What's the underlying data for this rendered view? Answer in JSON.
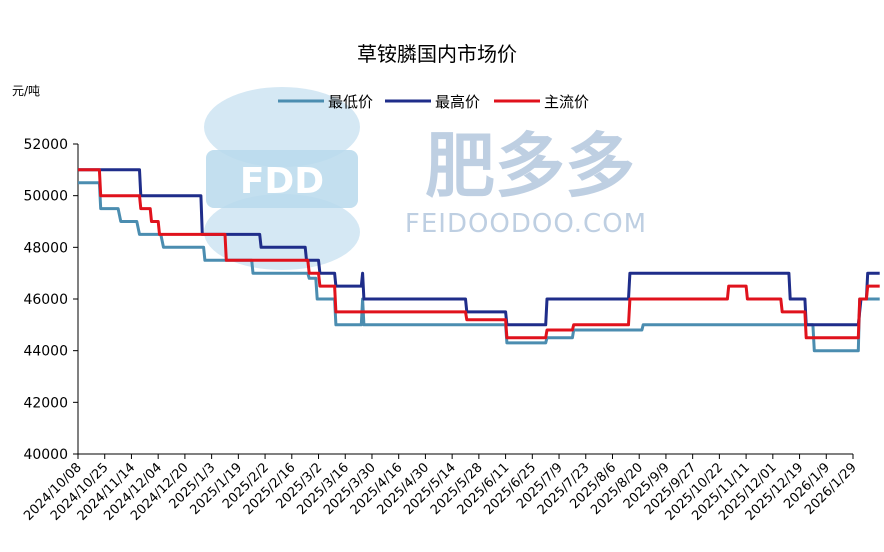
{
  "watermark": {
    "logo_text": "FDD",
    "cn_text": "肥多多",
    "en_text": "FEIDOODOO.COM"
  },
  "chart_data": {
    "type": "line",
    "title": "草铵膦国内市场价",
    "ylabel": "元/吨",
    "xlabel": "",
    "ylim": [
      40000,
      52000
    ],
    "yticks": [
      40000,
      42000,
      44000,
      46000,
      48000,
      50000,
      52000
    ],
    "legend_position": "top-center",
    "grid": false,
    "x_ticks": [
      "2024/10/08",
      "2024/10/25",
      "2024/11/14",
      "2024/12/04",
      "2024/12/20",
      "2025/1/3",
      "2025/1/19",
      "2025/2/2",
      "2025/2/16",
      "2025/3/2",
      "2025/3/16",
      "2025/3/30",
      "2025/4/16",
      "2025/4/30",
      "2025/5/14",
      "2025/5/28",
      "2025/6/11",
      "2025/6/25",
      "2025/7/9",
      "2025/7/23",
      "2025/8/6",
      "2025/8/20",
      "2025/9/9",
      "2025/9/27",
      "2025/10/22",
      "2025/11/11",
      "2025/12/01",
      "2025/12/19",
      "2026/1/9",
      "2026/1/29"
    ],
    "series": [
      {
        "name": "最低价",
        "color": "#4b8db0",
        "points": [
          [
            0,
            50500
          ],
          [
            0.8,
            50500
          ],
          [
            0.85,
            49500
          ],
          [
            1.5,
            49500
          ],
          [
            1.6,
            49000
          ],
          [
            2.2,
            49000
          ],
          [
            2.3,
            48500
          ],
          [
            3.1,
            48500
          ],
          [
            3.2,
            48000
          ],
          [
            4.7,
            48000
          ],
          [
            4.75,
            47500
          ],
          [
            6.5,
            47500
          ],
          [
            6.55,
            47000
          ],
          [
            8.6,
            47000
          ],
          [
            8.65,
            46800
          ],
          [
            8.9,
            46800
          ],
          [
            8.95,
            46000
          ],
          [
            9.6,
            46000
          ],
          [
            9.65,
            45000
          ],
          [
            10.6,
            45000
          ],
          [
            10.65,
            46000
          ],
          [
            10.7,
            45000
          ],
          [
            16.0,
            45000
          ],
          [
            16.05,
            44300
          ],
          [
            17.5,
            44300
          ],
          [
            17.55,
            44500
          ],
          [
            18.5,
            44500
          ],
          [
            18.55,
            44800
          ],
          [
            21.1,
            44800
          ],
          [
            21.15,
            45000
          ],
          [
            27.5,
            45000
          ],
          [
            27.55,
            44000
          ],
          [
            29.2,
            44000
          ],
          [
            29.25,
            46000
          ],
          [
            30,
            46000
          ]
        ]
      },
      {
        "name": "最高价",
        "color": "#1f2d8a",
        "points": [
          [
            0,
            51000
          ],
          [
            2.3,
            51000
          ],
          [
            2.35,
            50000
          ],
          [
            4.6,
            50000
          ],
          [
            4.65,
            48500
          ],
          [
            6.8,
            48500
          ],
          [
            6.85,
            48000
          ],
          [
            8.5,
            48000
          ],
          [
            8.55,
            47500
          ],
          [
            9.0,
            47500
          ],
          [
            9.05,
            47000
          ],
          [
            9.6,
            47000
          ],
          [
            9.65,
            46500
          ],
          [
            10.6,
            46500
          ],
          [
            10.65,
            47000
          ],
          [
            10.7,
            46000
          ],
          [
            14.5,
            46000
          ],
          [
            14.55,
            45500
          ],
          [
            16.0,
            45500
          ],
          [
            16.05,
            45000
          ],
          [
            17.5,
            45000
          ],
          [
            17.55,
            46000
          ],
          [
            20.6,
            46000
          ],
          [
            20.65,
            47000
          ],
          [
            26.6,
            47000
          ],
          [
            26.65,
            46000
          ],
          [
            27.2,
            46000
          ],
          [
            27.25,
            45000
          ],
          [
            29.2,
            45000
          ],
          [
            29.3,
            46000
          ],
          [
            29.5,
            46000
          ],
          [
            29.55,
            47000
          ],
          [
            30,
            47000
          ]
        ]
      },
      {
        "name": "主流价",
        "color": "#e0121c",
        "points": [
          [
            0,
            51000
          ],
          [
            0.8,
            51000
          ],
          [
            0.85,
            50000
          ],
          [
            2.3,
            50000
          ],
          [
            2.35,
            49500
          ],
          [
            2.7,
            49500
          ],
          [
            2.75,
            49000
          ],
          [
            3.0,
            49000
          ],
          [
            3.05,
            48500
          ],
          [
            5.5,
            48500
          ],
          [
            5.55,
            47500
          ],
          [
            8.6,
            47500
          ],
          [
            8.65,
            47000
          ],
          [
            9.0,
            47000
          ],
          [
            9.05,
            46500
          ],
          [
            9.6,
            46500
          ],
          [
            9.65,
            45500
          ],
          [
            14.5,
            45500
          ],
          [
            14.55,
            45200
          ],
          [
            16.0,
            45200
          ],
          [
            16.05,
            44500
          ],
          [
            17.5,
            44500
          ],
          [
            17.55,
            44800
          ],
          [
            18.5,
            44800
          ],
          [
            18.55,
            45000
          ],
          [
            20.6,
            45000
          ],
          [
            20.65,
            46000
          ],
          [
            24.3,
            46000
          ],
          [
            24.35,
            46500
          ],
          [
            25.0,
            46500
          ],
          [
            25.05,
            46000
          ],
          [
            26.3,
            46000
          ],
          [
            26.35,
            45500
          ],
          [
            27.2,
            45500
          ],
          [
            27.25,
            44500
          ],
          [
            28.7,
            44500
          ],
          [
            29.2,
            44500
          ],
          [
            29.25,
            46000
          ],
          [
            29.5,
            46000
          ],
          [
            29.55,
            46500
          ],
          [
            30,
            46500
          ]
        ]
      }
    ]
  }
}
